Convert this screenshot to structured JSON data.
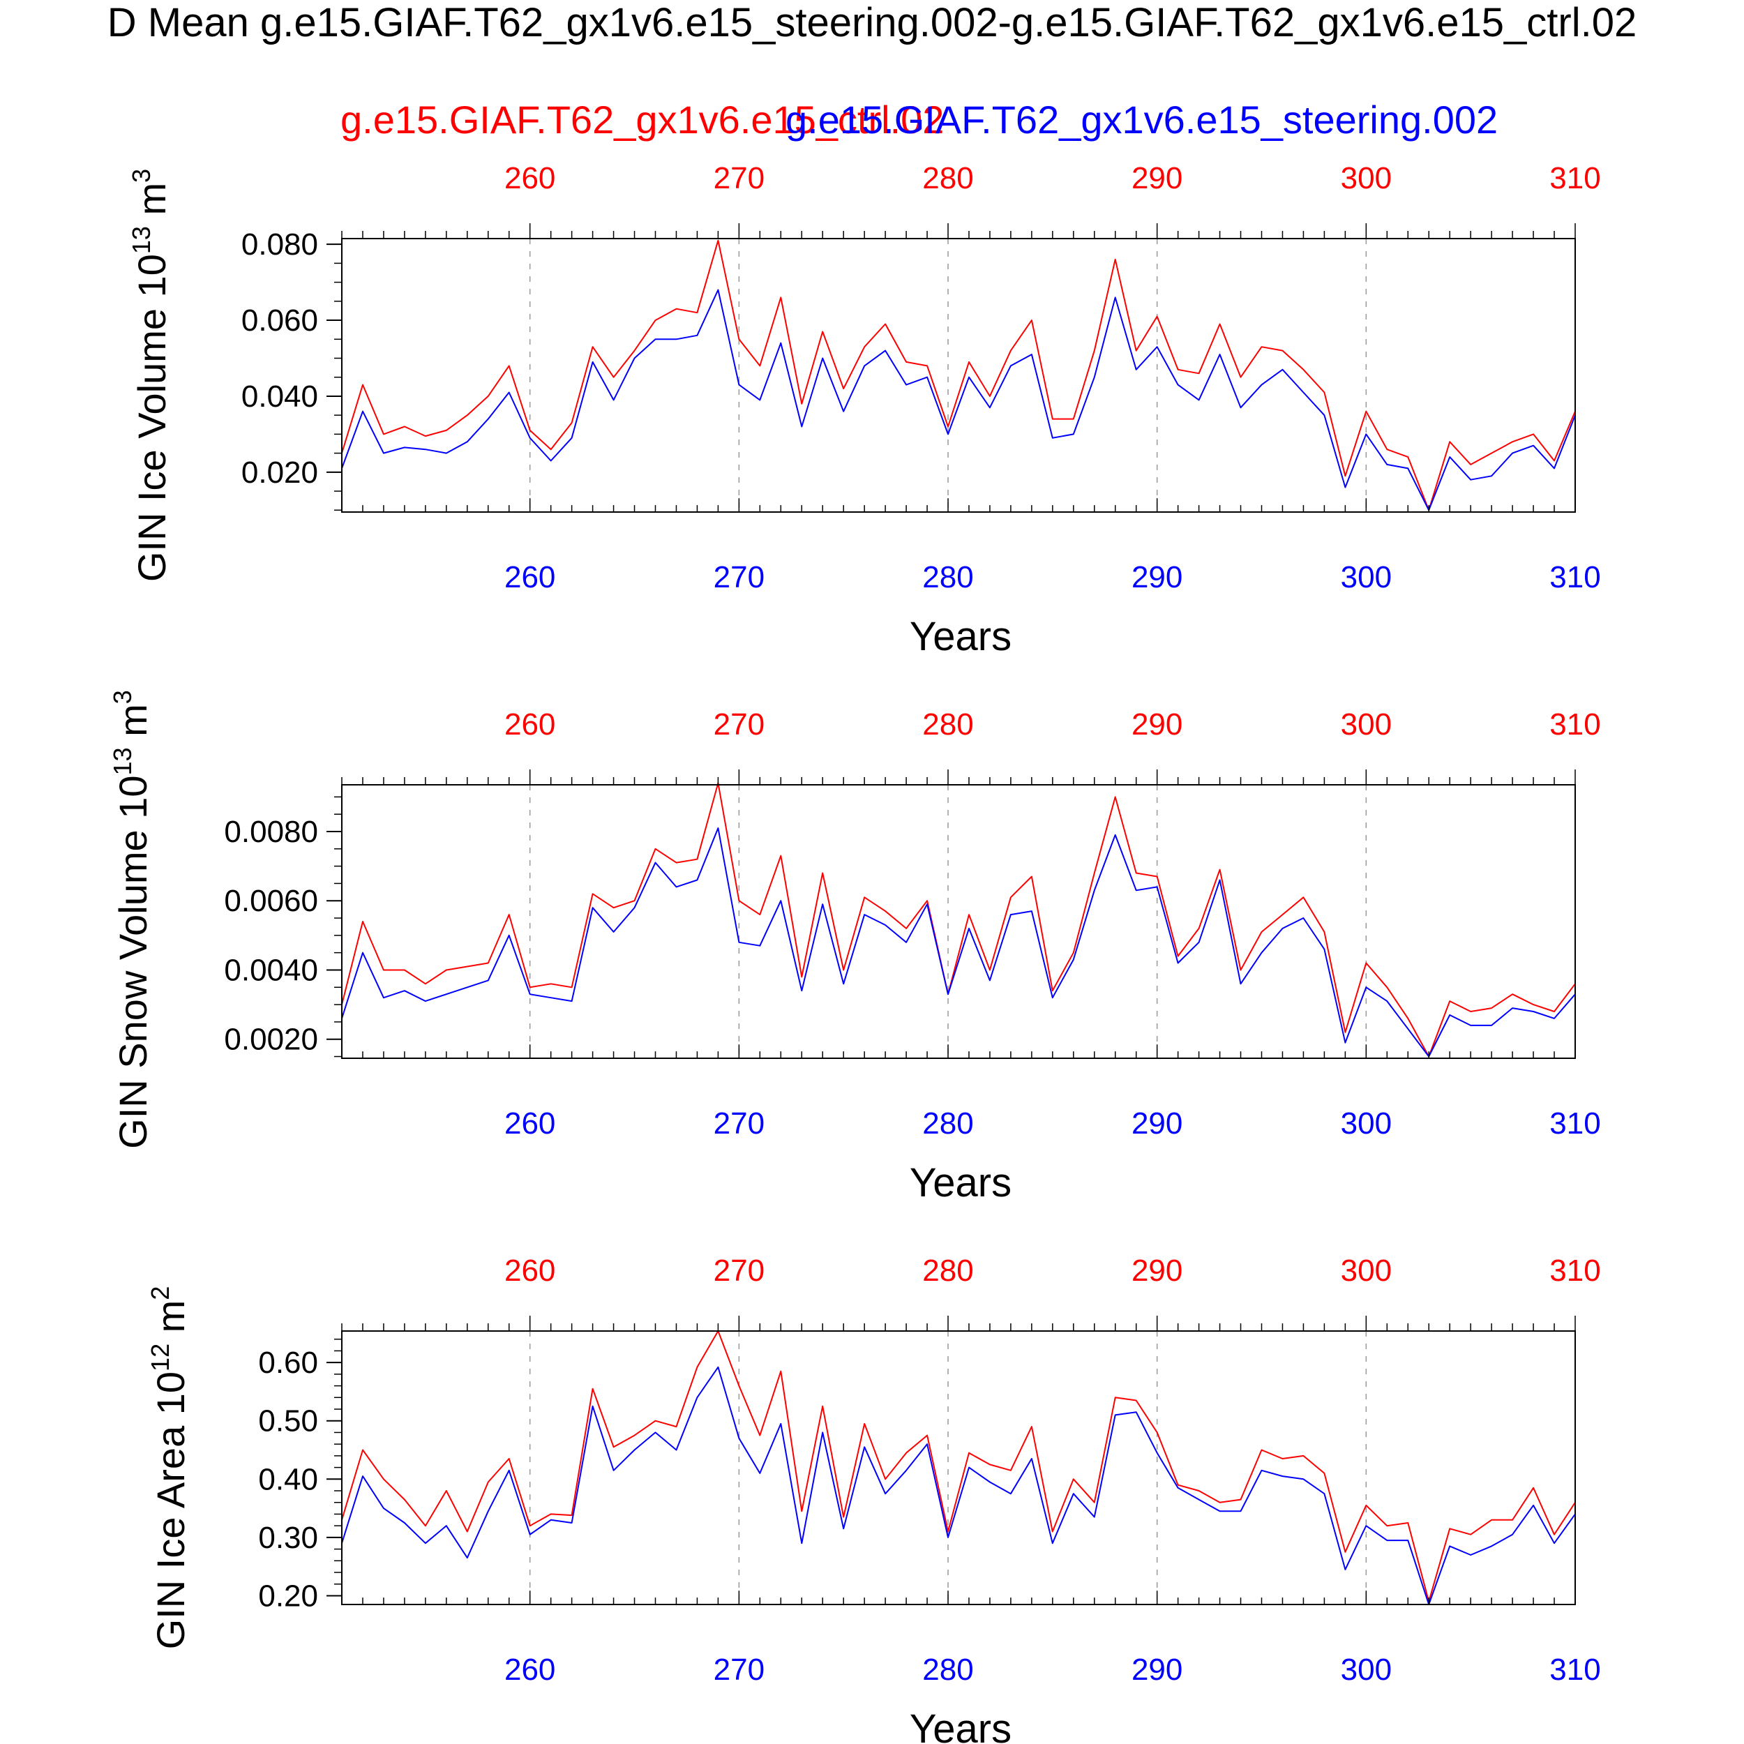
{
  "figure": {
    "title": "Mean g.e15.GIAF.T62_gx1v6.e15_steering.002-g.e15.GIAF.T62_gx1v6.e15_ctrl.02",
    "title_prefix": "D",
    "case_labels": [
      {
        "text": "g.e15.GIAF.T62_gx1v6.e15_ctrl.02",
        "color": "#ff0000"
      },
      {
        "text": "g.e15.GIAF.T62_gx1v6.e15_steering.002",
        "color": "#0000ff"
      }
    ]
  },
  "chart_data": [
    {
      "type": "line",
      "title": "",
      "xlabel": "Years",
      "ylabel_text": "GIN Ice Volume 10",
      "ylabel_sup": "13",
      "ylabel_unit": "m",
      "ylabel_unit_sup": "3",
      "xlim": [
        251,
        310
      ],
      "ylim": [
        0.0095,
        0.0815
      ],
      "x_ticks": [
        260,
        270,
        280,
        290,
        300,
        310
      ],
      "y_ticks": [
        0.02,
        0.04,
        0.06,
        0.08
      ],
      "y_tick_labels": [
        "0.020",
        "0.040",
        "0.060",
        "0.080"
      ],
      "y_minor_step": 0.005,
      "x_tick_labels_top": [
        "260",
        "270",
        "280",
        "290",
        "300",
        "310"
      ],
      "x_tick_labels_bottom": [
        "260",
        "270",
        "280",
        "290",
        "300",
        "310"
      ],
      "x_start": 251,
      "series": [
        {
          "name": "g.e15.GIAF.T62_gx1v6.e15_ctrl.02",
          "color": "#ff0000",
          "values": [
            0.025,
            0.043,
            0.03,
            0.032,
            0.0295,
            0.031,
            0.035,
            0.04,
            0.048,
            0.031,
            0.026,
            0.033,
            0.053,
            0.045,
            0.052,
            0.06,
            0.063,
            0.062,
            0.081,
            0.055,
            0.048,
            0.066,
            0.038,
            0.057,
            0.042,
            0.053,
            0.059,
            0.049,
            0.048,
            0.032,
            0.049,
            0.04,
            0.052,
            0.06,
            0.034,
            0.034,
            0.052,
            0.076,
            0.052,
            0.061,
            0.047,
            0.046,
            0.059,
            0.045,
            0.053,
            0.052,
            0.047,
            0.041,
            0.019,
            0.036,
            0.026,
            0.024,
            0.01,
            0.028,
            0.022,
            0.025,
            0.028,
            0.03,
            0.023,
            0.036
          ]
        },
        {
          "name": "g.e15.GIAF.T62_gx1v6.e15_steering.002",
          "color": "#0000ff",
          "values": [
            0.021,
            0.036,
            0.025,
            0.0265,
            0.026,
            0.025,
            0.028,
            0.034,
            0.041,
            0.029,
            0.023,
            0.029,
            0.049,
            0.039,
            0.05,
            0.055,
            0.055,
            0.056,
            0.068,
            0.043,
            0.039,
            0.054,
            0.032,
            0.05,
            0.036,
            0.048,
            0.052,
            0.043,
            0.045,
            0.03,
            0.045,
            0.037,
            0.048,
            0.051,
            0.029,
            0.03,
            0.045,
            0.066,
            0.047,
            0.053,
            0.043,
            0.039,
            0.051,
            0.037,
            0.043,
            0.047,
            0.041,
            0.035,
            0.016,
            0.03,
            0.022,
            0.021,
            0.01,
            0.024,
            0.018,
            0.019,
            0.025,
            0.027,
            0.021,
            0.035
          ]
        }
      ]
    },
    {
      "type": "line",
      "title": "",
      "xlabel": "Years",
      "ylabel_text": "GIN Snow Volume 10",
      "ylabel_sup": "13",
      "ylabel_unit": "m",
      "ylabel_unit_sup": "3",
      "xlim": [
        251,
        310
      ],
      "ylim": [
        0.00145,
        0.00935
      ],
      "x_ticks": [
        260,
        270,
        280,
        290,
        300,
        310
      ],
      "y_ticks": [
        0.002,
        0.004,
        0.006,
        0.008
      ],
      "y_tick_labels": [
        "0.0020",
        "0.0040",
        "0.0060",
        "0.0080"
      ],
      "y_minor_step": 0.0005,
      "x_tick_labels_top": [
        "260",
        "270",
        "280",
        "290",
        "300",
        "310"
      ],
      "x_tick_labels_bottom": [
        "260",
        "270",
        "280",
        "290",
        "300",
        "310"
      ],
      "x_start": 251,
      "series": [
        {
          "name": "g.e15.GIAF.T62_gx1v6.e15_ctrl.02",
          "color": "#ff0000",
          "values": [
            0.003,
            0.0054,
            0.004,
            0.004,
            0.0036,
            0.004,
            0.0041,
            0.0042,
            0.0056,
            0.0035,
            0.0036,
            0.0035,
            0.0062,
            0.0058,
            0.006,
            0.0075,
            0.0071,
            0.0072,
            0.0094,
            0.006,
            0.0056,
            0.0073,
            0.0038,
            0.0068,
            0.004,
            0.0061,
            0.0057,
            0.0052,
            0.006,
            0.0033,
            0.0056,
            0.004,
            0.0061,
            0.0067,
            0.0034,
            0.0045,
            0.0068,
            0.009,
            0.0068,
            0.0067,
            0.0044,
            0.0052,
            0.0069,
            0.004,
            0.0051,
            0.0056,
            0.0061,
            0.0051,
            0.0022,
            0.0042,
            0.0035,
            0.0026,
            0.0015,
            0.0031,
            0.0028,
            0.0029,
            0.0033,
            0.003,
            0.0028,
            0.0036
          ]
        },
        {
          "name": "g.e15.GIAF.T62_gx1v6.e15_steering.002",
          "color": "#0000ff",
          "values": [
            0.0026,
            0.0045,
            0.0032,
            0.0034,
            0.0031,
            0.0033,
            0.0035,
            0.0037,
            0.005,
            0.0033,
            0.0032,
            0.0031,
            0.0058,
            0.0051,
            0.0058,
            0.0071,
            0.0064,
            0.0066,
            0.0081,
            0.0048,
            0.0047,
            0.006,
            0.0034,
            0.0059,
            0.0036,
            0.0056,
            0.0053,
            0.0048,
            0.0059,
            0.0033,
            0.0052,
            0.0037,
            0.0056,
            0.0057,
            0.0032,
            0.0043,
            0.0063,
            0.0079,
            0.0063,
            0.0064,
            0.0042,
            0.0048,
            0.0066,
            0.0036,
            0.0045,
            0.0052,
            0.0055,
            0.0046,
            0.0019,
            0.0035,
            0.0031,
            0.0023,
            0.0015,
            0.0027,
            0.0024,
            0.0024,
            0.0029,
            0.0028,
            0.0026,
            0.0033
          ]
        }
      ]
    },
    {
      "type": "line",
      "title": "",
      "xlabel": "Years",
      "ylabel_text": "GIN Ice Area 10",
      "ylabel_sup": "12",
      "ylabel_unit": "m",
      "ylabel_unit_sup": "2",
      "xlim": [
        251,
        310
      ],
      "ylim": [
        0.185,
        0.654
      ],
      "x_ticks": [
        260,
        270,
        280,
        290,
        300,
        310
      ],
      "y_ticks": [
        0.2,
        0.3,
        0.4,
        0.5,
        0.6
      ],
      "y_tick_labels": [
        "0.20",
        "0.30",
        "0.40",
        "0.50",
        "0.60"
      ],
      "y_minor_step": 0.02,
      "x_tick_labels_top": [
        "260",
        "270",
        "280",
        "290",
        "300",
        "310"
      ],
      "x_tick_labels_bottom": [
        "260",
        "270",
        "280",
        "290",
        "300",
        "310"
      ],
      "x_start": 251,
      "series": [
        {
          "name": "g.e15.GIAF.T62_gx1v6.e15_ctrl.02",
          "color": "#ff0000",
          "values": [
            0.33,
            0.45,
            0.4,
            0.365,
            0.32,
            0.38,
            0.31,
            0.395,
            0.435,
            0.32,
            0.34,
            0.338,
            0.555,
            0.455,
            0.475,
            0.5,
            0.49,
            0.592,
            0.654,
            0.56,
            0.475,
            0.585,
            0.345,
            0.525,
            0.335,
            0.495,
            0.4,
            0.445,
            0.475,
            0.31,
            0.445,
            0.425,
            0.415,
            0.49,
            0.31,
            0.4,
            0.36,
            0.54,
            0.535,
            0.48,
            0.39,
            0.38,
            0.36,
            0.365,
            0.45,
            0.435,
            0.44,
            0.41,
            0.275,
            0.355,
            0.32,
            0.325,
            0.19,
            0.315,
            0.305,
            0.33,
            0.33,
            0.385,
            0.305,
            0.36
          ]
        },
        {
          "name": "g.e15.GIAF.T62_gx1v6.e15_steering.002",
          "color": "#0000ff",
          "values": [
            0.29,
            0.405,
            0.35,
            0.325,
            0.29,
            0.32,
            0.265,
            0.345,
            0.415,
            0.305,
            0.33,
            0.325,
            0.525,
            0.415,
            0.45,
            0.48,
            0.45,
            0.54,
            0.592,
            0.47,
            0.41,
            0.495,
            0.29,
            0.48,
            0.315,
            0.455,
            0.375,
            0.415,
            0.46,
            0.3,
            0.42,
            0.395,
            0.375,
            0.435,
            0.29,
            0.375,
            0.335,
            0.51,
            0.515,
            0.445,
            0.385,
            0.365,
            0.345,
            0.345,
            0.415,
            0.405,
            0.4,
            0.375,
            0.245,
            0.32,
            0.295,
            0.295,
            0.185,
            0.285,
            0.27,
            0.285,
            0.305,
            0.355,
            0.29,
            0.34
          ]
        }
      ]
    }
  ]
}
